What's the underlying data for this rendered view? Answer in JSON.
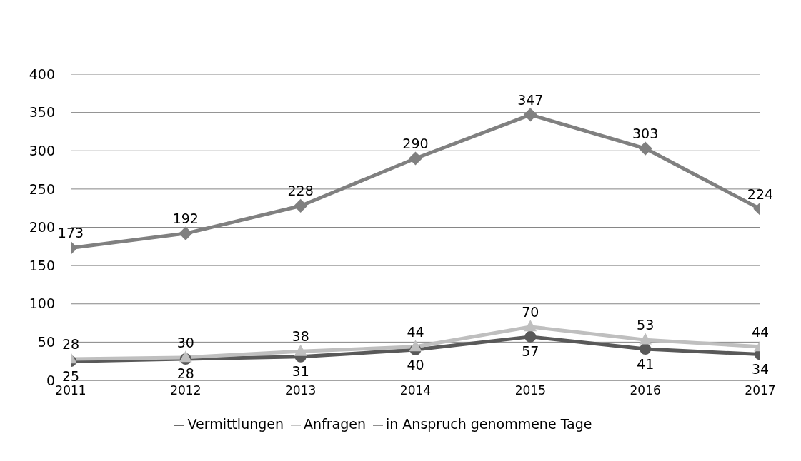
{
  "chart_data": {
    "type": "line",
    "categories": [
      "2011",
      "2012",
      "2013",
      "2014",
      "2015",
      "2016",
      "2017"
    ],
    "series": [
      {
        "name": "Vermittlungen",
        "color": "#595959",
        "marker": "circle",
        "values": [
          25,
          28,
          31,
          40,
          57,
          41,
          34
        ]
      },
      {
        "name": "Anfragen",
        "color": "#bfbfbf",
        "marker": "triangle",
        "values": [
          28,
          30,
          38,
          44,
          70,
          53,
          44
        ]
      },
      {
        "name": "in Anspruch genommene Tage",
        "color": "#808080",
        "marker": "diamond",
        "values": [
          173,
          192,
          228,
          290,
          347,
          303,
          224
        ]
      }
    ],
    "ylim": [
      0,
      400
    ],
    "yticks": [
      0,
      50,
      100,
      150,
      200,
      250,
      300,
      350,
      400
    ],
    "grid": "y",
    "legend": "bottom",
    "data_labels": true
  }
}
